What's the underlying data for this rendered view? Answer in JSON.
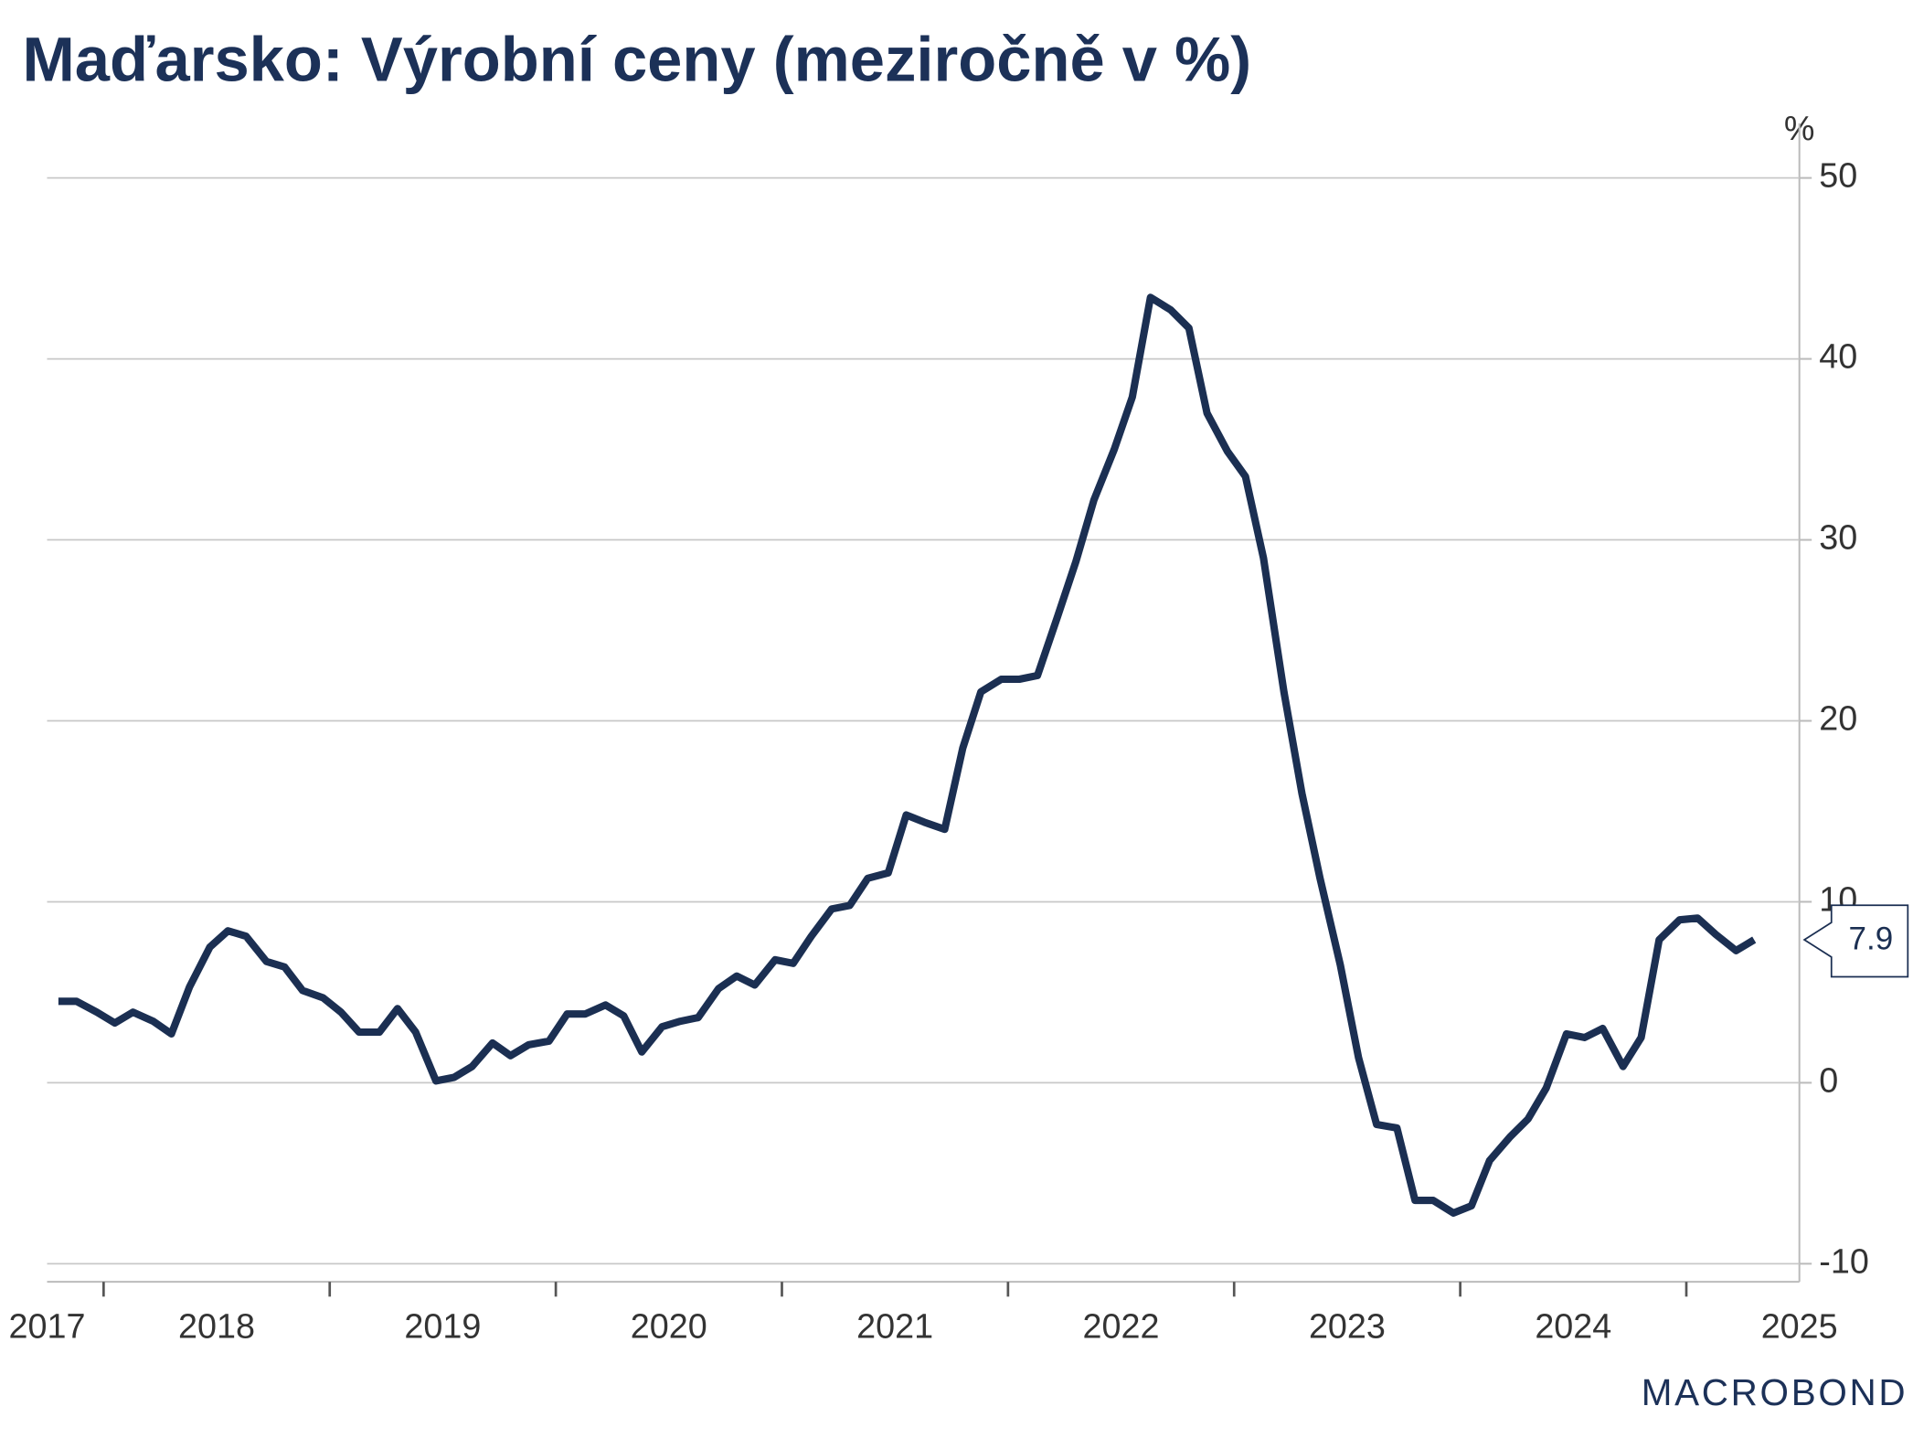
{
  "chart_data": {
    "type": "line",
    "title": "Maďarsko: Výrobní ceny (meziročně v %)",
    "y_unit": "%",
    "logo": "MACROBOND",
    "x": [
      2017.8,
      2017.88,
      2017.97,
      2018.05,
      2018.13,
      2018.22,
      2018.3,
      2018.38,
      2018.47,
      2018.55,
      2018.63,
      2018.72,
      2018.8,
      2018.88,
      2018.97,
      2019.05,
      2019.13,
      2019.22,
      2019.3,
      2019.38,
      2019.47,
      2019.55,
      2019.63,
      2019.72,
      2019.8,
      2019.88,
      2019.97,
      2020.05,
      2020.13,
      2020.22,
      2020.3,
      2020.38,
      2020.47,
      2020.55,
      2020.63,
      2020.72,
      2020.8,
      2020.88,
      2020.97,
      2021.05,
      2021.13,
      2021.22,
      2021.3,
      2021.38,
      2021.47,
      2021.55,
      2021.63,
      2021.72,
      2021.8,
      2021.88,
      2021.97,
      2022.05,
      2022.13,
      2022.22,
      2022.3,
      2022.38,
      2022.47,
      2022.55,
      2022.63,
      2022.72,
      2022.8,
      2022.88,
      2022.97,
      2023.05,
      2023.13,
      2023.22,
      2023.3,
      2023.38,
      2023.47,
      2023.55,
      2023.63,
      2023.72,
      2023.8,
      2023.88,
      2023.97,
      2024.05,
      2024.13,
      2024.22,
      2024.3,
      2024.38,
      2024.47,
      2024.55,
      2024.63,
      2024.72,
      2024.8,
      2024.88,
      2024.97,
      2025.05,
      2025.13,
      2025.22,
      2025.3
    ],
    "series": [
      {
        "name": "Výrobní ceny",
        "color": "#1b2f52",
        "values": [
          4.5,
          4.5,
          3.9,
          3.3,
          3.9,
          3.4,
          2.7,
          5.3,
          7.5,
          8.4,
          8.1,
          6.7,
          6.4,
          5.1,
          4.7,
          3.9,
          2.8,
          2.8,
          4.1,
          2.8,
          0.1,
          0.3,
          0.9,
          2.2,
          1.5,
          2.1,
          2.3,
          3.8,
          3.8,
          4.3,
          3.7,
          1.7,
          3.1,
          3.4,
          3.6,
          5.2,
          5.9,
          5.4,
          6.8,
          6.6,
          8.1,
          9.6,
          9.8,
          11.3,
          11.6,
          14.8,
          14.4,
          14.0,
          18.5,
          21.6,
          22.3,
          22.3,
          22.5,
          25.8,
          28.8,
          32.2,
          35.0,
          37.9,
          43.4,
          42.7,
          41.7,
          37.0,
          34.9,
          33.5,
          29.0,
          21.6,
          16.0,
          11.3,
          6.5,
          1.4,
          -2.3,
          -2.5,
          -6.5,
          -6.5,
          -7.2,
          -6.8,
          -4.3,
          -3.0,
          -2.0,
          -0.3,
          2.7,
          2.5,
          3.0,
          0.9,
          2.5,
          7.9,
          9.0,
          9.1,
          8.2,
          7.3,
          7.9
        ]
      }
    ],
    "xlim": [
      2017.75,
      2025.5
    ],
    "xticks": [
      2018,
      2019,
      2020,
      2021,
      2022,
      2023,
      2024,
      2025
    ],
    "year_labels": [
      2017,
      2018,
      2019,
      2020,
      2021,
      2022,
      2023,
      2024,
      2025
    ],
    "ylim": [
      -11,
      52
    ],
    "yticks": [
      -10,
      0,
      10,
      20,
      30,
      40,
      50
    ],
    "grid": true
  }
}
